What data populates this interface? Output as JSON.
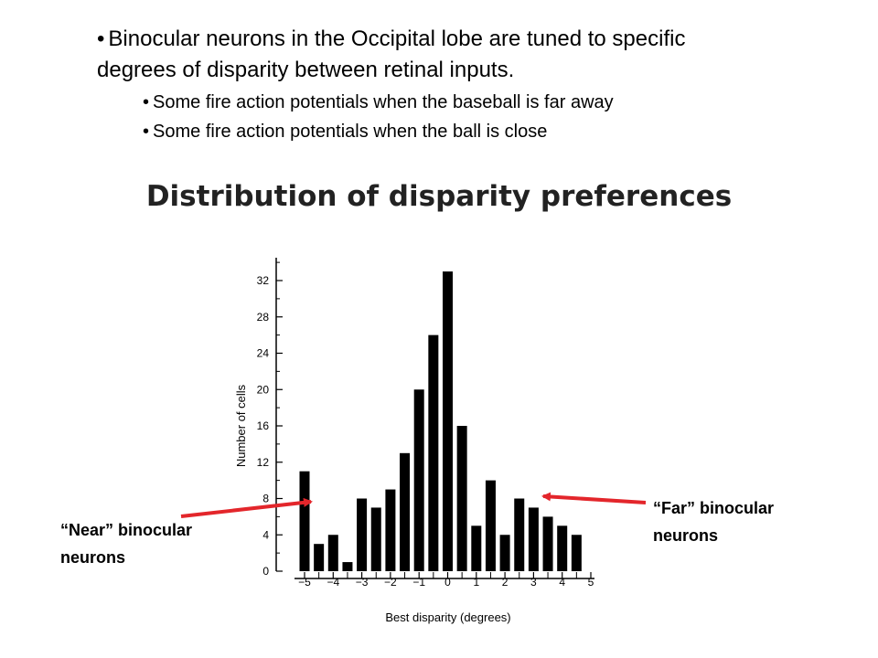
{
  "slide": {
    "bullet_main": "Binocular neurons in the Occipital lobe are tuned to specific degrees of disparity between retinal inputs.",
    "bullet_sub": [
      "Some fire action potentials when the baseball is far away",
      "Some fire action potentials when the ball is close"
    ],
    "bullet_glyph": "•"
  },
  "chart_data": {
    "type": "bar",
    "title": "Distribution of disparity preferences",
    "xlabel": "Best disparity (degrees)",
    "ylabel": "Number of cells",
    "x": [
      -5,
      -4.5,
      -4,
      -3.5,
      -3,
      -2.5,
      -2,
      -1.5,
      -1,
      -0.5,
      0,
      0.5,
      1,
      1.5,
      2,
      2.5,
      3,
      3.5,
      4,
      4.5,
      5
    ],
    "values": [
      11,
      3,
      4,
      1,
      8,
      7,
      9,
      13,
      20,
      26,
      33,
      16,
      5,
      10,
      4,
      8,
      7,
      6,
      5,
      4,
      0
    ],
    "xlim": [
      -5,
      5
    ],
    "ylim": [
      0,
      34
    ],
    "xticks": [
      "-5",
      "-4",
      "-3",
      "-2",
      "-1",
      "0",
      "1",
      "2",
      "3",
      "4",
      "5"
    ],
    "yticks": [
      "0",
      "4",
      "8",
      "12",
      "16",
      "20",
      "24",
      "28",
      "32"
    ],
    "bar_color": "#000000",
    "annotation_color": "#e3262b",
    "grid": false
  },
  "annotations": {
    "near": "“Near” binocular neurons",
    "far": "“Far” binocular neurons"
  }
}
